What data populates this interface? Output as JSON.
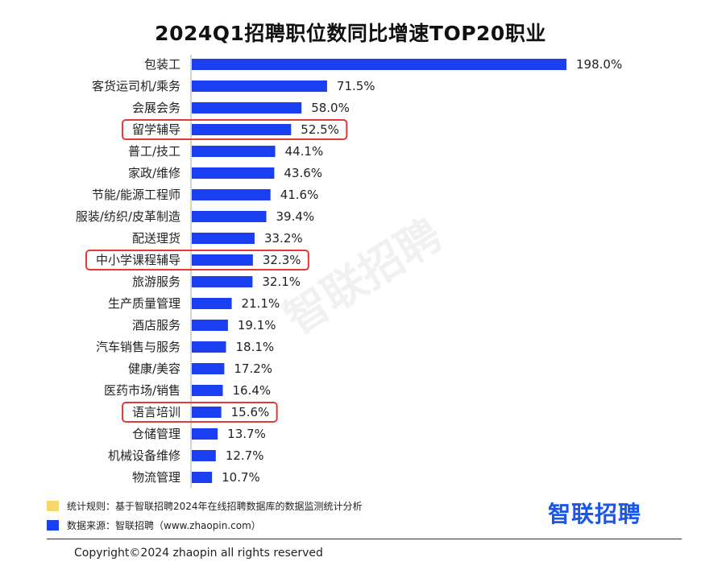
{
  "title": "2024Q1招聘职位数同比增速TOP20职业",
  "watermark": "智联招聘",
  "chart_data": {
    "type": "bar",
    "orientation": "horizontal",
    "title": "2024Q1招聘职位数同比增速TOP20职业",
    "categories": [
      "包装工",
      "客货运司机/乘务",
      "会展会务",
      "留学辅导",
      "普工/技工",
      "家政/维修",
      "节能/能源工程师",
      "服装/纺织/皮革制造",
      "配送理货",
      "中小学课程辅导",
      "旅游服务",
      "生产质量管理",
      "酒店服务",
      "汽车销售与服务",
      "健康/美容",
      "医药市场/销售",
      "语言培训",
      "仓储管理",
      "机械设备维修",
      "物流管理"
    ],
    "values": [
      198.0,
      71.5,
      58.0,
      52.5,
      44.1,
      43.6,
      41.6,
      39.4,
      33.2,
      32.3,
      32.1,
      21.1,
      19.1,
      18.1,
      17.2,
      16.4,
      15.6,
      13.7,
      12.7,
      10.7
    ],
    "value_labels": [
      "198.0%",
      "71.5%",
      "58.0%",
      "52.5%",
      "44.1%",
      "43.6%",
      "41.6%",
      "39.4%",
      "33.2%",
      "32.3%",
      "32.1%",
      "21.1%",
      "19.1%",
      "18.1%",
      "17.2%",
      "16.4%",
      "15.6%",
      "13.7%",
      "12.7%",
      "10.7%"
    ],
    "highlighted": [
      "留学辅导",
      "中小学课程辅导",
      "语言培训"
    ],
    "bar_color": "#1a3ff0",
    "highlight_color": "#e53935",
    "grid": false,
    "xlim": [
      0,
      198
    ]
  },
  "notes": [
    {
      "swatch": "#f5d76e",
      "text": "统计规则：基于智联招聘2024年在线招聘数据库的数据监测统计分析"
    },
    {
      "swatch": "#1a3ff0",
      "text": "数据来源：智联招聘（www.zhaopin.com）"
    }
  ],
  "logo": "智联招聘",
  "copyright": "Copyright©2024 zhaopin all rights reserved"
}
